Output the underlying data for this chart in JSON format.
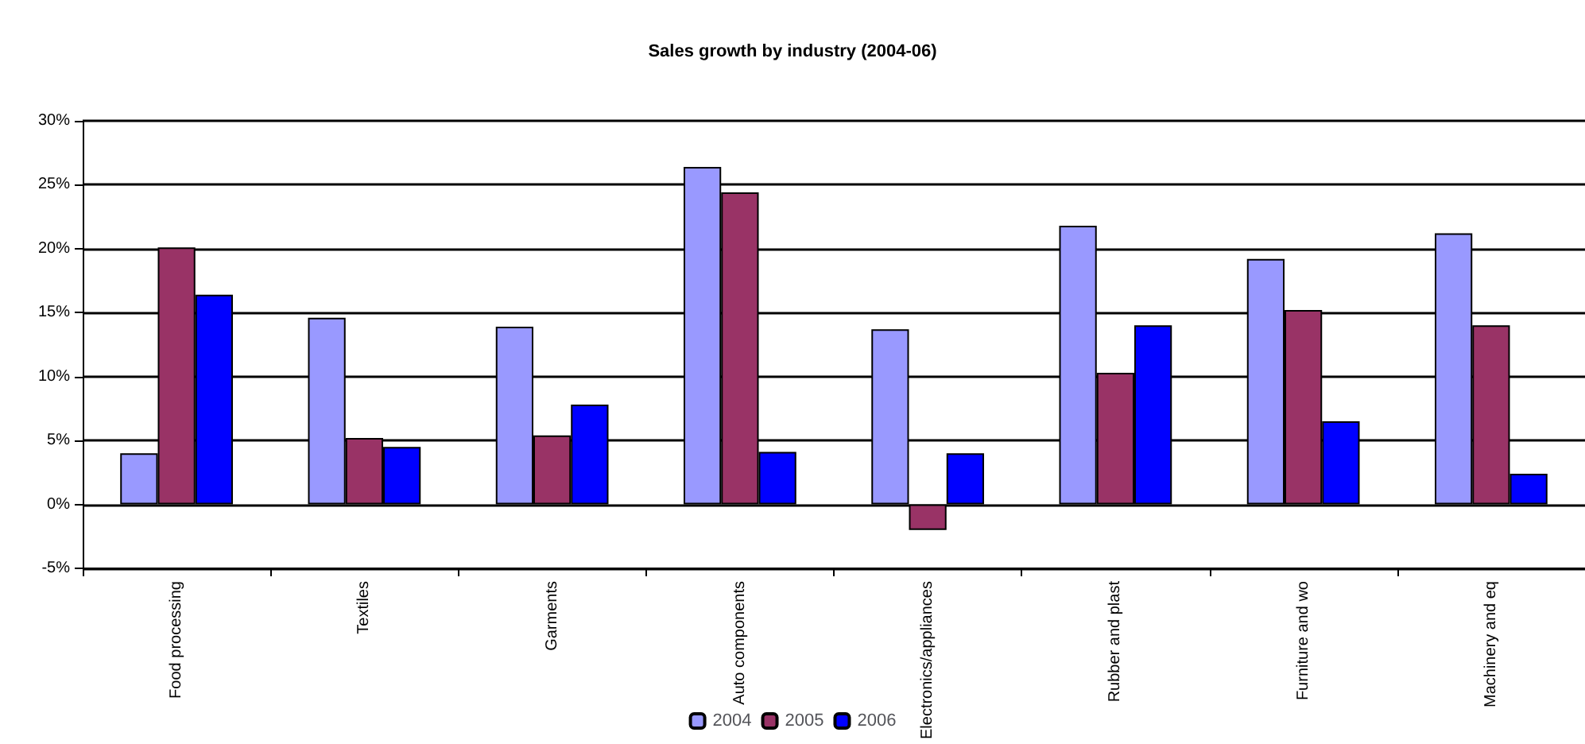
{
  "chart_data": {
    "type": "bar",
    "title": "Sales growth by industry (2004-06)",
    "categories": [
      "Food processing",
      "Textiles",
      "Garments",
      "Auto components",
      "Electronics/appliances",
      "Rubber and plast",
      "Furniture and wo",
      "Machinery and eq"
    ],
    "series": [
      {
        "name": "2004",
        "color": "#9999ff",
        "values": [
          4.0,
          14.6,
          13.9,
          26.4,
          13.7,
          21.8,
          19.2,
          21.2
        ]
      },
      {
        "name": "2005",
        "color": "#993366",
        "values": [
          20.1,
          5.2,
          5.4,
          24.4,
          -2.0,
          10.3,
          15.2,
          14.0
        ]
      },
      {
        "name": "2006",
        "color": "#0000ff",
        "values": [
          16.4,
          4.5,
          7.8,
          4.1,
          4.0,
          14.0,
          6.5,
          2.4
        ]
      }
    ],
    "ylim": [
      -5,
      30
    ],
    "yticks": [
      {
        "value": -5,
        "label": "-5%"
      },
      {
        "value": 0,
        "label": "0%"
      },
      {
        "value": 5,
        "label": "5%"
      },
      {
        "value": 10,
        "label": "10%"
      },
      {
        "value": 15,
        "label": "15%"
      },
      {
        "value": 20,
        "label": "20%"
      },
      {
        "value": 25,
        "label": "25%"
      },
      {
        "value": 30,
        "label": "30%"
      }
    ],
    "grid": "y",
    "legend": "bottom"
  }
}
